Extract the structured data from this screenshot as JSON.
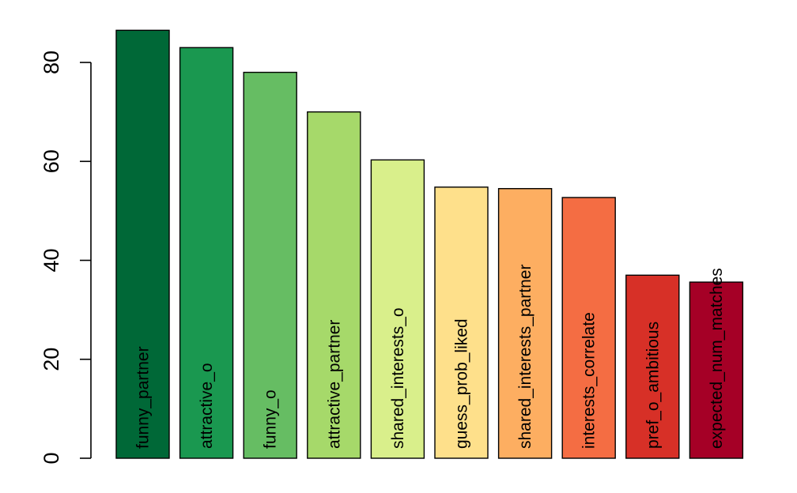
{
  "chart_data": {
    "type": "bar",
    "title": "",
    "xlabel": "",
    "ylabel": "",
    "ylim": [
      0,
      86
    ],
    "yticks": [
      0,
      20,
      40,
      60,
      80
    ],
    "grid": false,
    "legend": "none",
    "categories": [
      "funny_partner",
      "attractive_o",
      "funny_o",
      "attractive_partner",
      "shared_interests_o",
      "guess_prob_liked",
      "shared_interests_partner",
      "interests_correlate",
      "pref_o_ambitious",
      "expected_num_matches"
    ],
    "values": [
      86.5,
      83.0,
      78.0,
      70.0,
      60.3,
      54.8,
      54.5,
      52.7,
      37.0,
      35.6
    ],
    "colors": [
      "#006837",
      "#1A9850",
      "#66BD63",
      "#A6D96A",
      "#D9EF8B",
      "#FEE08B",
      "#FDAE61",
      "#F46D43",
      "#D73027",
      "#A50026"
    ]
  }
}
